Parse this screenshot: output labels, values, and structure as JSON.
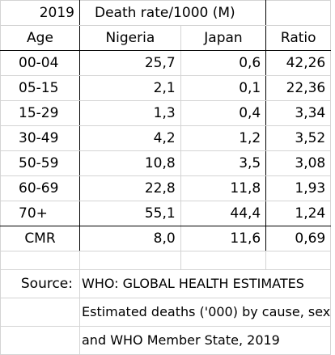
{
  "header": {
    "year": "2019",
    "title": "Death rate/1000 (M)",
    "col_age": "Age",
    "col_nigeria": "Nigeria",
    "col_japan": "Japan",
    "col_ratio": "Ratio"
  },
  "rows": [
    {
      "age": "00-04",
      "nigeria": "25,7",
      "japan": "0,6",
      "ratio": "42,26"
    },
    {
      "age": "05-15",
      "nigeria": "2,1",
      "japan": "0,1",
      "ratio": "22,36"
    },
    {
      "age": "15-29",
      "nigeria": "1,3",
      "japan": "0,4",
      "ratio": "3,34"
    },
    {
      "age": "30-49",
      "nigeria": "4,2",
      "japan": "1,2",
      "ratio": "3,52"
    },
    {
      "age": "50-59",
      "nigeria": "10,8",
      "japan": "3,5",
      "ratio": "3,08"
    },
    {
      "age": "60-69",
      "nigeria": "22,8",
      "japan": "11,8",
      "ratio": "1,93"
    },
    {
      "age": "70+",
      "nigeria": "55,1",
      "japan": "44,4",
      "ratio": "1,24"
    }
  ],
  "cmr": {
    "label": "CMR",
    "nigeria": "8,0",
    "japan": "11,6",
    "ratio": "0,69"
  },
  "source": {
    "label": "Source:",
    "line1": "WHO: GLOBAL HEALTH ESTIMATES",
    "line2": "Estimated deaths ('000) by cause, sex",
    "line3": "and WHO Member State, 2019"
  }
}
